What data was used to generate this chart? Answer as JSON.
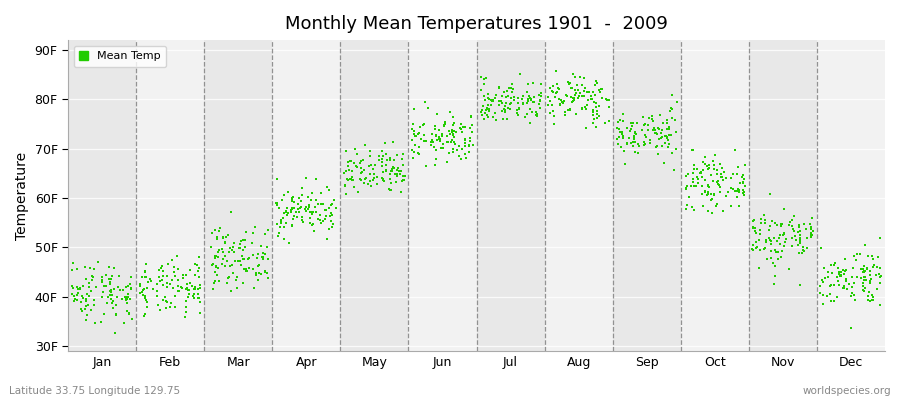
{
  "title": "Monthly Mean Temperatures 1901  -  2009",
  "ylabel": "Temperature",
  "xlabel_labels": [
    "Jan",
    "Feb",
    "Mar",
    "Apr",
    "May",
    "Jun",
    "Jul",
    "Aug",
    "Sep",
    "Oct",
    "Nov",
    "Dec"
  ],
  "ytick_labels": [
    "30F",
    "40F",
    "50F",
    "60F",
    "70F",
    "80F",
    "90F"
  ],
  "ytick_values": [
    30,
    40,
    50,
    60,
    70,
    80,
    90
  ],
  "ylim": [
    29,
    92
  ],
  "dot_color": "#22cc00",
  "bg_color": "#eeeeee",
  "band_color_a": "#e8e8e8",
  "band_color_b": "#f2f2f2",
  "fig_color": "#ffffff",
  "legend_label": "Mean Temp",
  "footer_left": "Latitude 33.75 Longitude 129.75",
  "footer_right": "worldspecies.org",
  "monthly_means": [
    41.0,
    41.5,
    48.0,
    57.5,
    65.0,
    72.0,
    79.5,
    80.0,
    73.0,
    63.0,
    52.0,
    44.0
  ],
  "monthly_stds": [
    3.2,
    2.8,
    3.0,
    2.5,
    2.5,
    2.5,
    2.2,
    2.5,
    2.5,
    2.5,
    3.2,
    3.0
  ],
  "n_years": 109,
  "seed": 42
}
